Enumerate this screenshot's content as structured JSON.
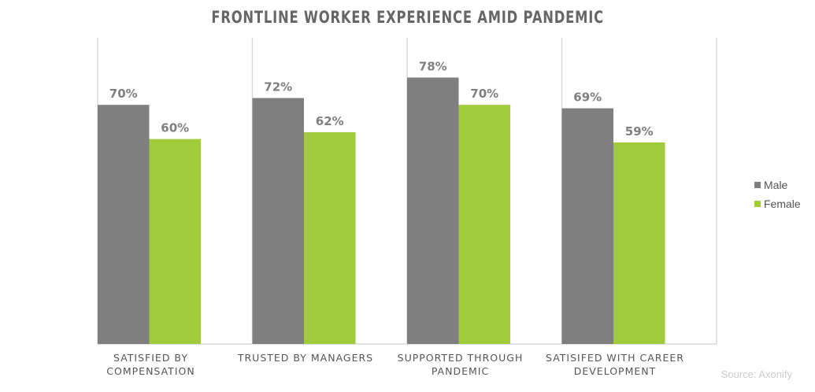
{
  "chart_data": {
    "type": "bar",
    "title": "FRONTLINE WORKER EXPERIENCE AMID PANDEMIC",
    "categories": [
      [
        "SATISFIED BY",
        "COMPENSATION"
      ],
      [
        "TRUSTED BY MANAGERS"
      ],
      [
        "SUPPORTED THROUGH",
        "PANDEMIC"
      ],
      [
        "SATISIFED WITH CAREER",
        "DEVELOPMENT"
      ]
    ],
    "series": [
      {
        "name": "Male",
        "color": "#7f7f7f",
        "values": [
          70,
          72,
          78,
          69
        ]
      },
      {
        "name": "Female",
        "color": "#a0cb3a",
        "values": [
          60,
          62,
          70,
          59
        ]
      }
    ],
    "value_suffix": "%",
    "ylim": [
      0,
      100
    ],
    "legend": "right",
    "grid": "vertical category separators",
    "source": "Source: Axonify"
  }
}
